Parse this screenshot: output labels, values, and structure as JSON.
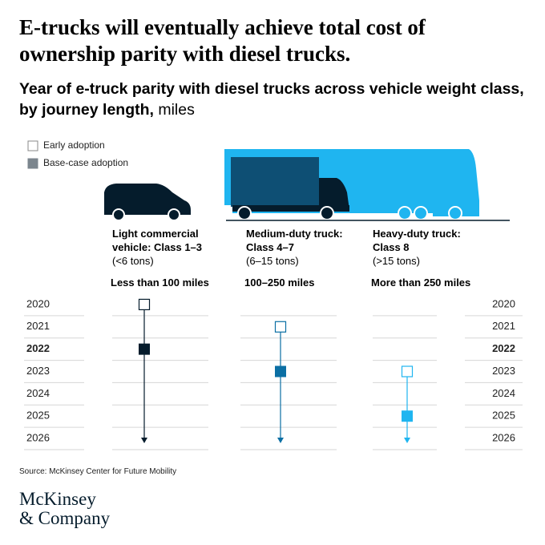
{
  "chart_data": {
    "type": "timeline",
    "title": "E-trucks will eventually achieve total cost of ownership parity with diesel trucks.",
    "subtitle": "Year of e-truck parity with diesel trucks across vehicle weight class, by journey length,",
    "subtitle_unit": "miles",
    "vehicle_classes": [
      "Light commercial vehicle: Class 1–3",
      "Medium-duty truck: Class 4–7",
      "Heavy-duty truck: Class 8"
    ],
    "weights": [
      "(<6 tons)",
      "(6–15 tons)",
      "(>15 tons)"
    ],
    "categories": [
      "Less than 100 miles",
      "100–250 miles",
      "More than 250 miles"
    ],
    "colors": [
      "#051c2c",
      "#0b6fa4",
      "#1fb5f0"
    ],
    "series": [
      {
        "name": "Early adoption",
        "color": "#ffffff",
        "values": [
          2020,
          2021,
          2023
        ]
      },
      {
        "name": "Base-case adoption",
        "color": "#7b858d",
        "values": [
          2022,
          2023,
          2025
        ]
      }
    ],
    "ylim": [
      2019.5,
      2026.5
    ],
    "yticks": [
      2020,
      2021,
      2022,
      2023,
      2024,
      2025,
      2026
    ],
    "bold_tick": 2022,
    "source": "Source: McKinsey Center for Future Mobility",
    "logo": [
      "McKinsey",
      "& Company"
    ]
  }
}
